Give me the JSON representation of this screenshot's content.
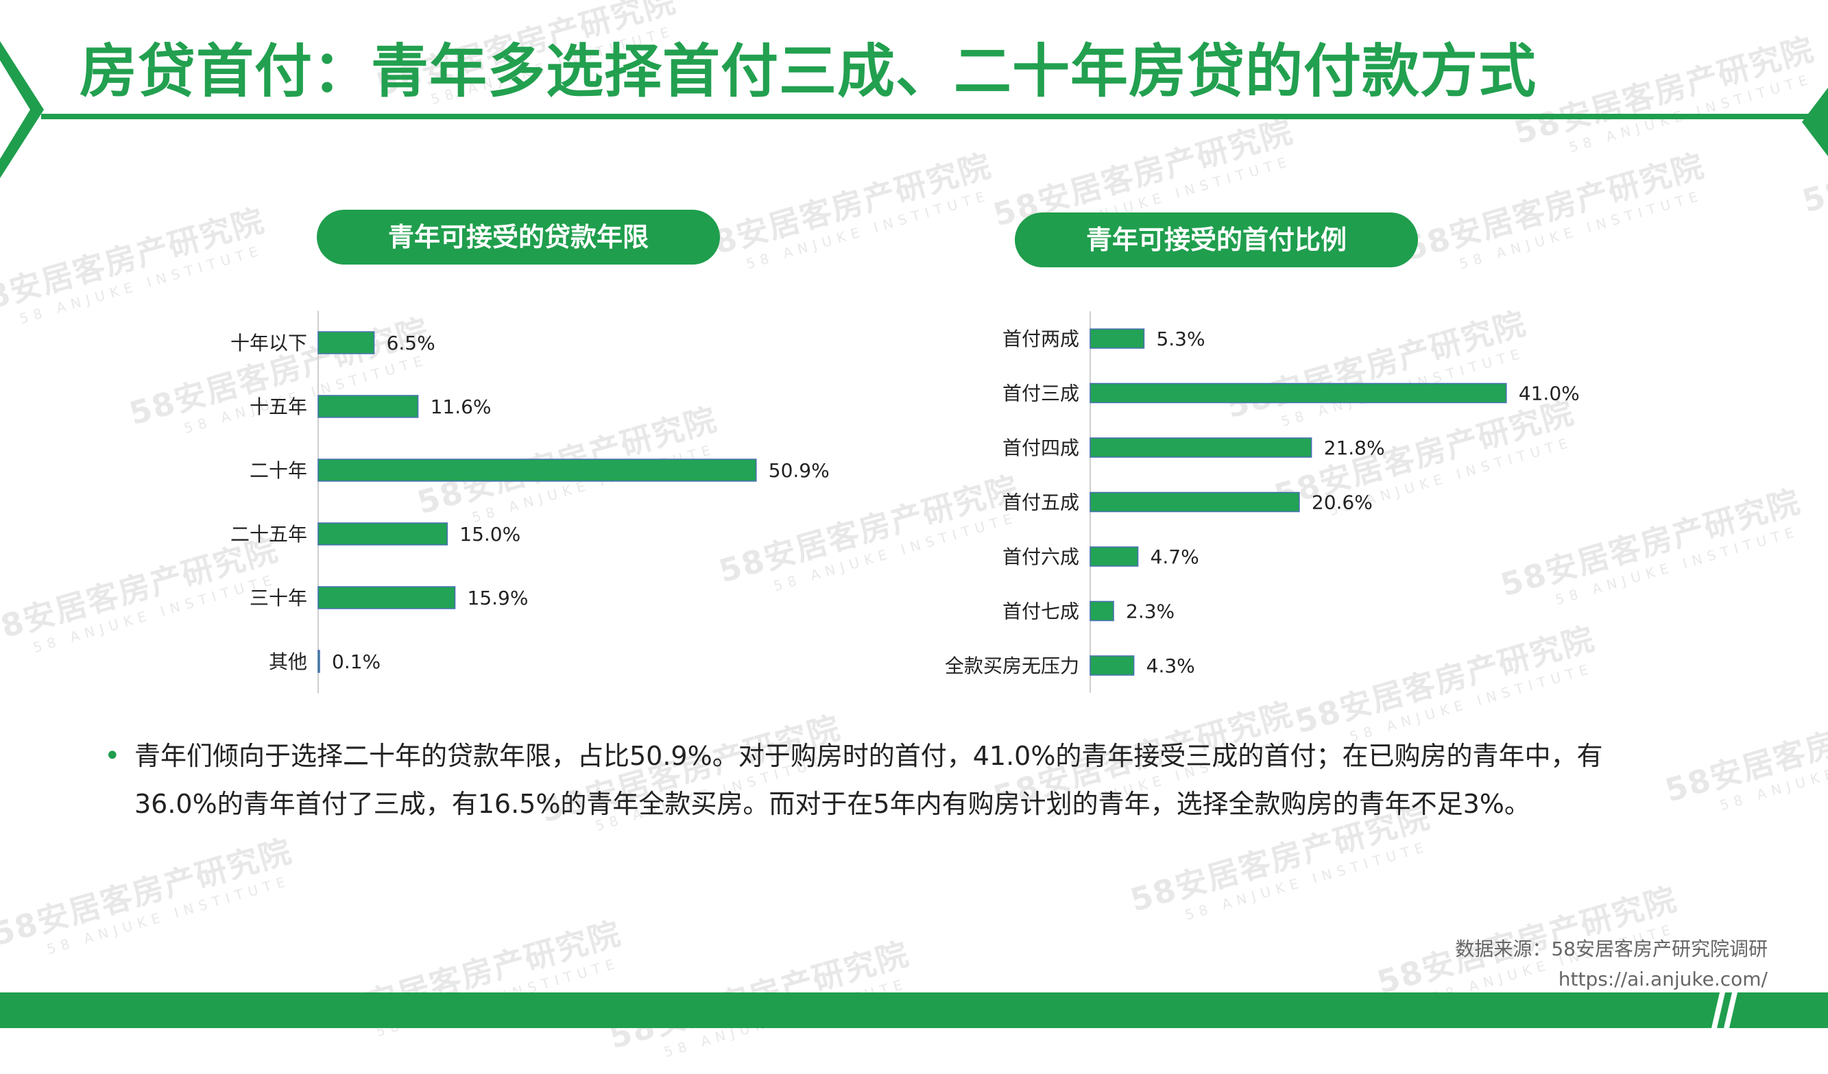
{
  "title": "房贷首付：青年多选择首付三成、二十年房贷的付款方式",
  "watermark": {
    "cn": "58安居客房产研究院",
    "en": "58 ANJUKE INSTITUTE"
  },
  "colors": {
    "accent": "#1f9e4d",
    "bar": "#22a355",
    "bar_edge": "#4a6fb5"
  },
  "chart_data": [
    {
      "type": "bar",
      "orientation": "horizontal",
      "title": "青年可接受的贷款年限",
      "categories": [
        "十年以下",
        "十五年",
        "二十年",
        "二十五年",
        "三十年",
        "其他"
      ],
      "values": [
        6.5,
        11.6,
        50.9,
        15.0,
        15.9,
        0.1
      ],
      "value_labels": [
        "6.5%",
        "11.6%",
        "50.9%",
        "15.0%",
        "15.9%",
        "0.1%"
      ],
      "unit": "%",
      "grid": false,
      "legend": "none"
    },
    {
      "type": "bar",
      "orientation": "horizontal",
      "title": "青年可接受的首付比例",
      "categories": [
        "首付两成",
        "首付三成",
        "首付四成",
        "首付五成",
        "首付六成",
        "首付七成",
        "全款买房无压力"
      ],
      "values": [
        5.3,
        41.0,
        21.8,
        20.6,
        4.7,
        2.3,
        4.3
      ],
      "value_labels": [
        "5.3%",
        "41.0%",
        "21.8%",
        "20.6%",
        "4.7%",
        "2.3%",
        "4.3%"
      ],
      "unit": "%",
      "grid": false,
      "legend": "none"
    }
  ],
  "summary": {
    "line1": "青年们倾向于选择二十年的贷款年限，占比50.9%。对于购房时的首付，41.0%的青年接受三成的首付；在已购房的青年中，有",
    "line2": "36.0%的青年首付了三成，有16.5%的青年全款买房。而对于在5年内有购房计划的青年，选择全款购房的青年不足3%。"
  },
  "source": {
    "line1": "数据来源：58安居客房产研究院调研",
    "line2": "https://ai.anjuke.com/"
  }
}
